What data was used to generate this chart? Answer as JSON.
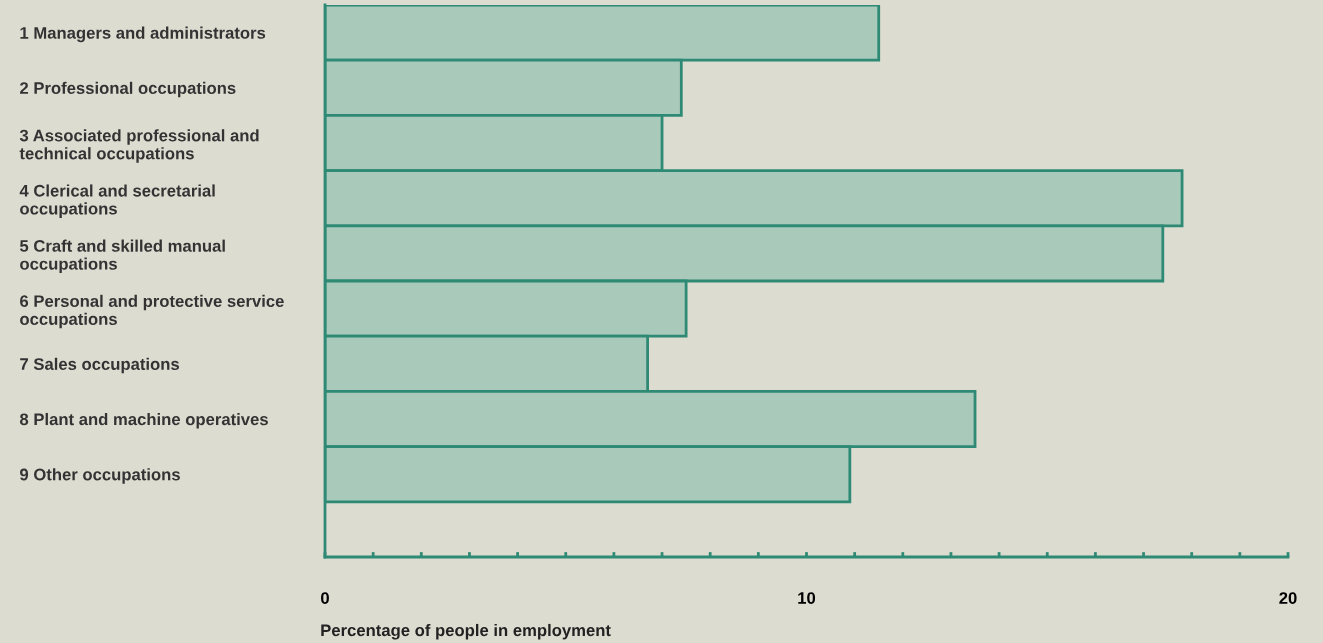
{
  "chart_data": {
    "type": "bar",
    "orientation": "horizontal",
    "categories": [
      "1 Managers and administrators",
      "2 Professional occupations",
      "3 Associated professional and\ntechnical occupations",
      "4 Clerical and secretarial\noccupations",
      "5 Craft and skilled manual\noccupations",
      "6 Personal and protective service\noccupations",
      "7 Sales occupations",
      "8 Plant and machine operatives",
      "9 Other occupations"
    ],
    "values": [
      11.5,
      7.4,
      7.0,
      17.8,
      17.4,
      7.5,
      6.7,
      13.5,
      10.9
    ],
    "color": "#a9c9bb",
    "xlabel": "Percentage of people in employment",
    "xlim": [
      0,
      20
    ],
    "xticks": [
      0,
      {
        "value": 1,
        "label": null
      },
      {
        "value": 2,
        "label": null
      },
      {
        "value": 3,
        "label": null
      },
      {
        "value": 4,
        "label": null
      },
      {
        "value": 5,
        "label": null
      },
      {
        "value": 6,
        "label": null
      },
      {
        "value": 7,
        "label": null
      },
      {
        "value": 8,
        "label": null
      },
      {
        "value": 9,
        "label": null
      },
      10,
      {
        "value": 11,
        "label": null
      },
      {
        "value": 12,
        "label": null
      },
      {
        "value": 13,
        "label": null
      },
      {
        "value": 14,
        "label": null
      },
      {
        "value": 15,
        "label": null
      },
      {
        "value": 16,
        "label": null
      },
      {
        "value": 17,
        "label": null
      },
      {
        "value": 18,
        "label": null
      },
      {
        "value": 19,
        "label": null
      },
      20
    ],
    "grid": false,
    "legend": false
  }
}
